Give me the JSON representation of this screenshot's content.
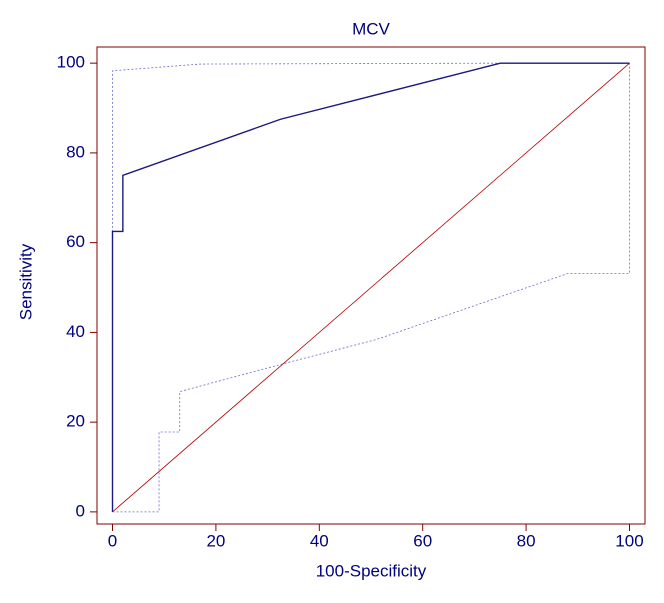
{
  "chart_data": {
    "type": "line",
    "title": "MCV",
    "x_label": "100-Specificity",
    "y_label": "Sensitivity",
    "xlim": [
      -3,
      103
    ],
    "ylim": [
      -2.7,
      103.6
    ],
    "xticks": [
      0,
      20,
      40,
      60,
      80,
      100
    ],
    "yticks": [
      0,
      20,
      40,
      60,
      80,
      100
    ],
    "frame_color": "#800000",
    "text_color": "#000080",
    "series": [
      {
        "color": "#b00000",
        "style": "solid",
        "width": 0.8,
        "x": [
          0,
          100
        ],
        "values": [
          0,
          100
        ]
      },
      {
        "color": "#6a6ad0",
        "style": "dotted",
        "width": 0.8,
        "x": [
          0,
          0,
          17,
          75,
          100
        ],
        "values": [
          0,
          98.3,
          99.8,
          100,
          100
        ]
      },
      {
        "color": "#6a6ad0",
        "style": "dotted",
        "width": 0.8,
        "x": [
          0,
          9,
          9,
          13,
          13,
          33,
          51,
          88,
          100,
          100
        ],
        "values": [
          0,
          0,
          17.8,
          17.8,
          26.8,
          33,
          38.4,
          53.1,
          53.1,
          100
        ]
      },
      {
        "color": "#1a1a80",
        "style": "solid",
        "width": 1.4,
        "x": [
          0,
          0,
          2,
          2,
          32.5,
          75,
          100
        ],
        "values": [
          0,
          62.5,
          62.5,
          75,
          87.5,
          100,
          100
        ]
      }
    ]
  }
}
